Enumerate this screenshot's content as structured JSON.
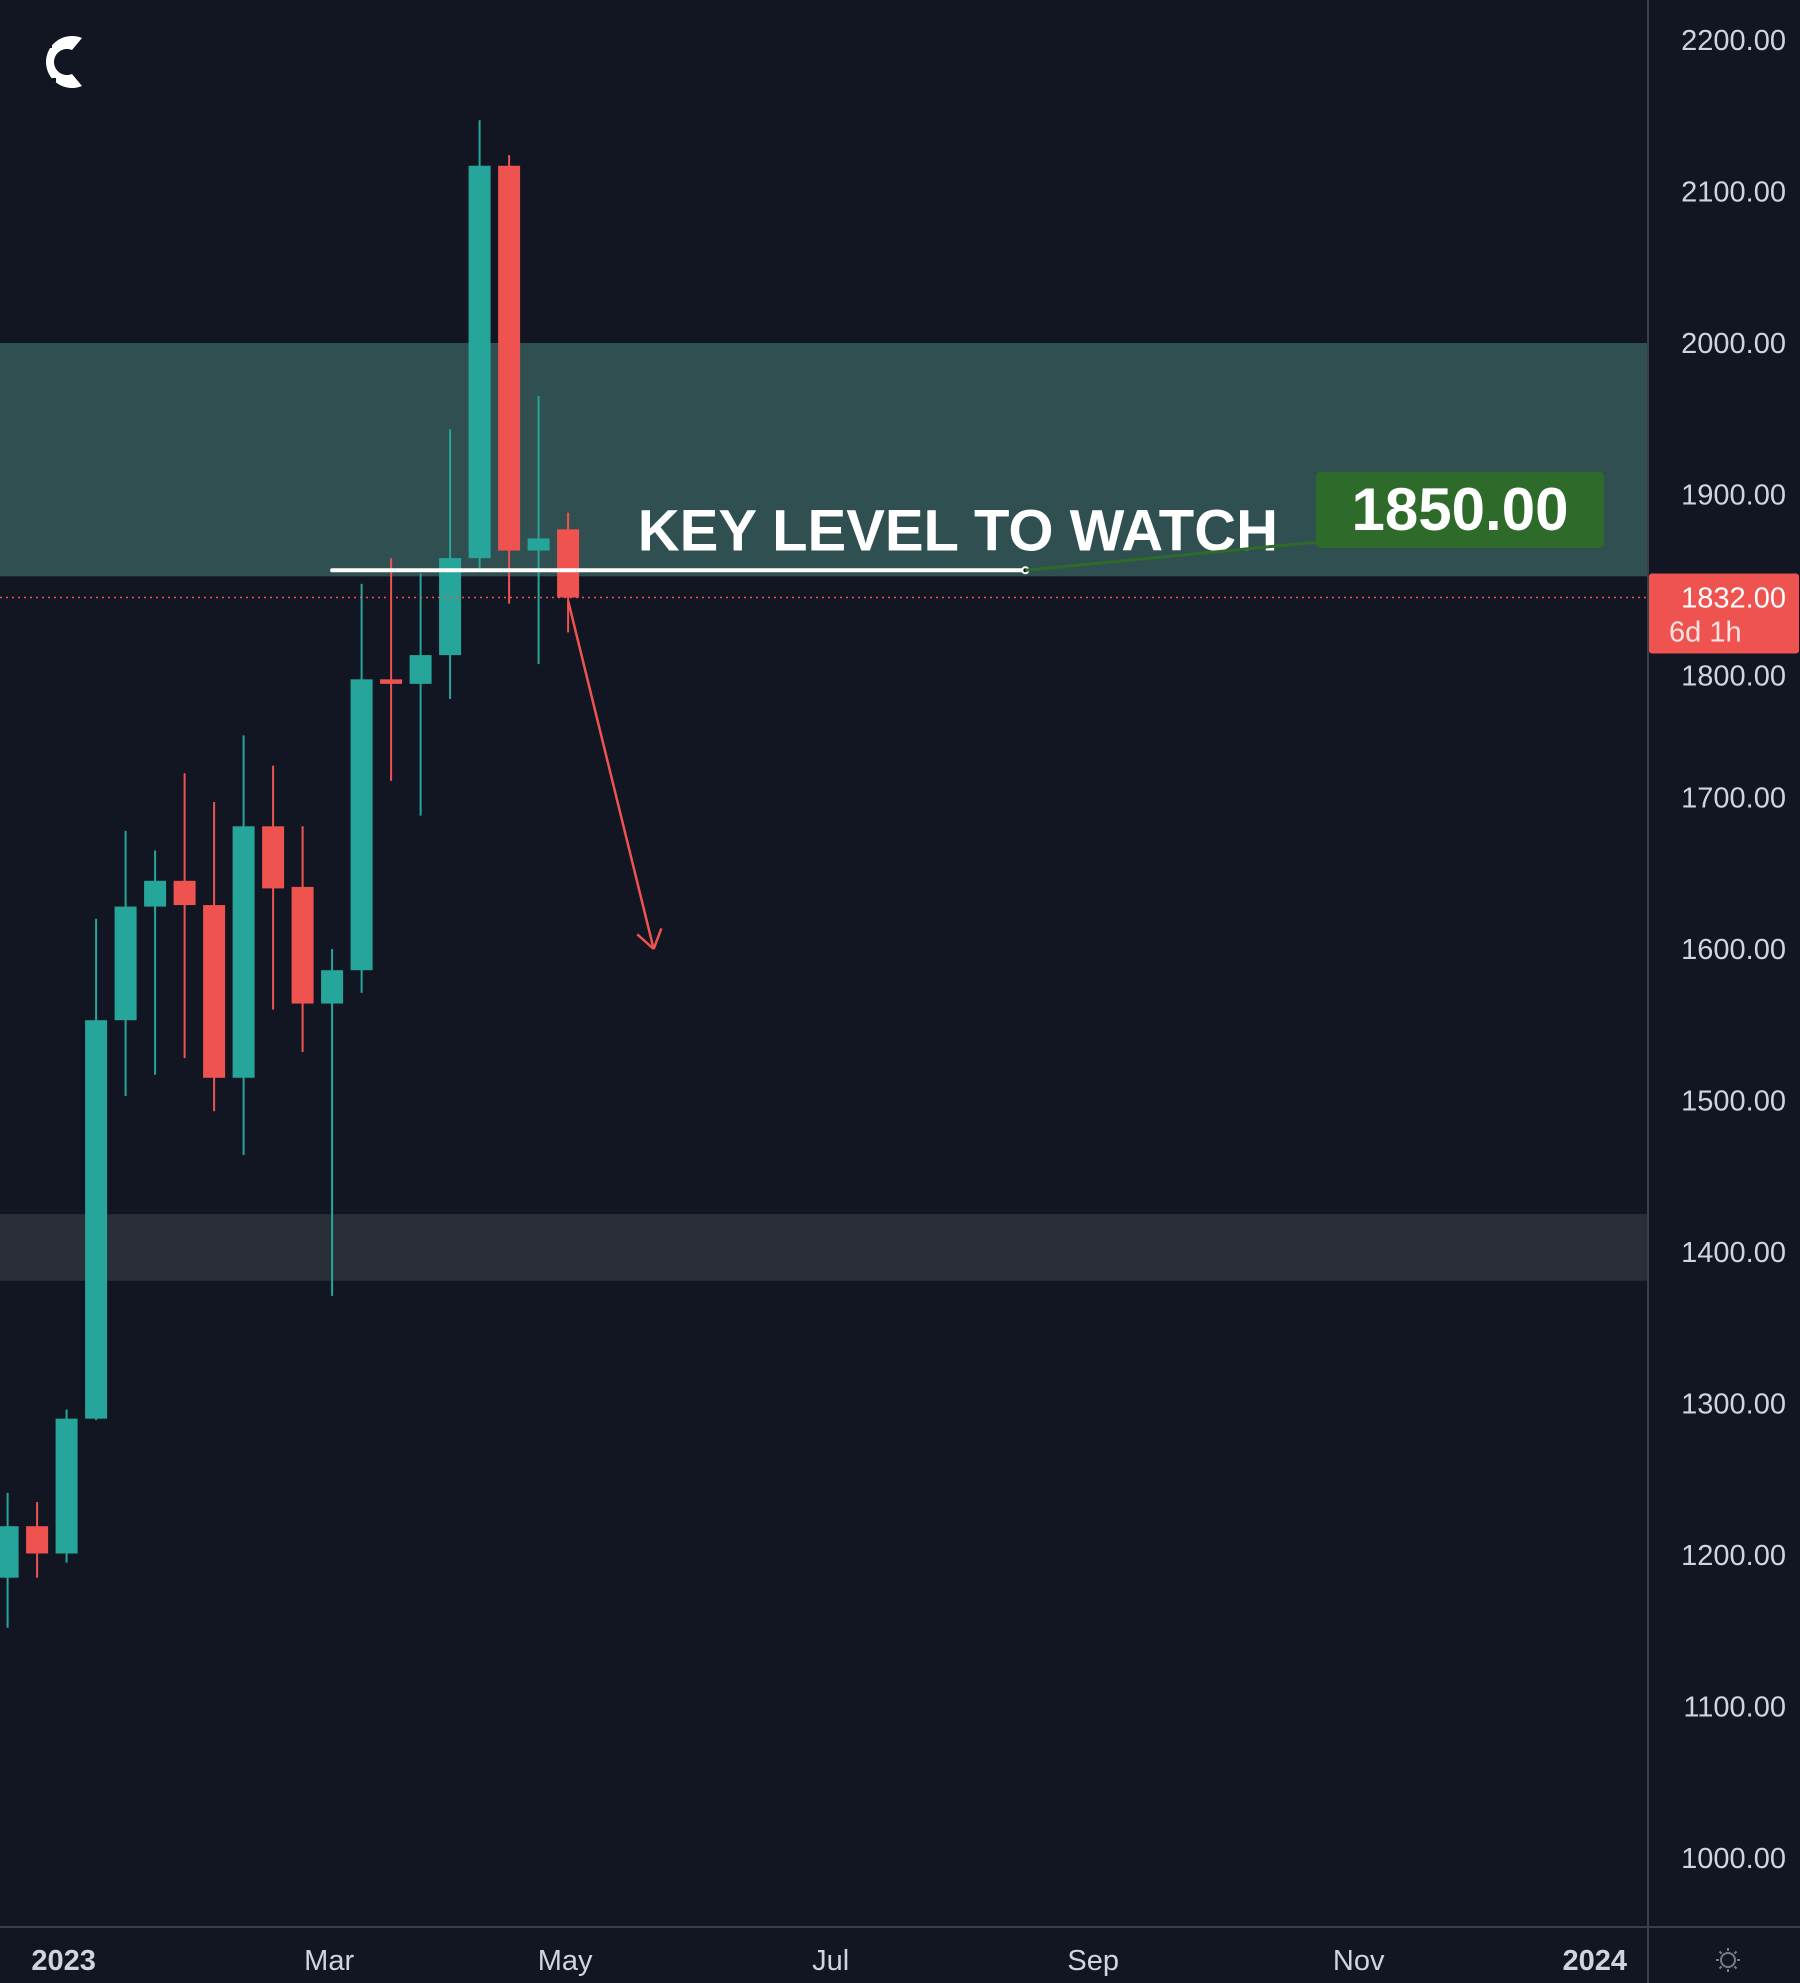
{
  "chart_data": {
    "type": "candlestick",
    "interval": "weekly",
    "ylim": [
      950,
      2225
    ],
    "y_ticks": [
      1000,
      1100,
      1200,
      1300,
      1400,
      1500,
      1600,
      1700,
      1800,
      1900,
      2000,
      2100,
      2200
    ],
    "y_tick_labels": [
      "1000.00",
      "1100.00",
      "1200.00",
      "1300.00",
      "1400.00",
      "1500.00",
      "1600.00",
      "1700.00",
      "1800.00",
      "1900.00",
      "2000.00",
      "2100.00",
      "2200.00"
    ],
    "x_ticks": [
      {
        "label": "2023",
        "index": 1.9,
        "bold": true
      },
      {
        "label": "Mar",
        "index": 10.9,
        "bold": false
      },
      {
        "label": "May",
        "index": 18.9,
        "bold": false
      },
      {
        "label": "Jul",
        "index": 27.9,
        "bold": false
      },
      {
        "label": "Sep",
        "index": 36.8,
        "bold": false
      },
      {
        "label": "Nov",
        "index": 45.8,
        "bold": false
      },
      {
        "label": "2024",
        "index": 53.8,
        "bold": true
      }
    ],
    "candles": [
      {
        "o": 1185,
        "h": 1241,
        "l": 1152,
        "c": 1219
      },
      {
        "o": 1219,
        "h": 1235,
        "l": 1185,
        "c": 1201
      },
      {
        "o": 1201,
        "h": 1296,
        "l": 1195,
        "c": 1290
      },
      {
        "o": 1290,
        "h": 1620,
        "l": 1289,
        "c": 1553
      },
      {
        "o": 1553,
        "h": 1678,
        "l": 1503,
        "c": 1628
      },
      {
        "o": 1628,
        "h": 1665,
        "l": 1517,
        "c": 1645
      },
      {
        "o": 1645,
        "h": 1716,
        "l": 1528,
        "c": 1629
      },
      {
        "o": 1629,
        "h": 1697,
        "l": 1493,
        "c": 1515
      },
      {
        "o": 1515,
        "h": 1741,
        "l": 1464,
        "c": 1681
      },
      {
        "o": 1681,
        "h": 1721,
        "l": 1560,
        "c": 1640
      },
      {
        "o": 1641,
        "h": 1681,
        "l": 1532,
        "c": 1564
      },
      {
        "o": 1564,
        "h": 1600,
        "l": 1371,
        "c": 1586
      },
      {
        "o": 1586,
        "h": 1841,
        "l": 1571,
        "c": 1778
      },
      {
        "o": 1778,
        "h": 1858,
        "l": 1711,
        "c": 1775
      },
      {
        "o": 1775,
        "h": 1848,
        "l": 1688,
        "c": 1794
      },
      {
        "o": 1794,
        "h": 1943,
        "l": 1765,
        "c": 1858
      },
      {
        "o": 1858,
        "h": 2147,
        "l": 1851,
        "c": 2117
      },
      {
        "o": 2117,
        "h": 2124,
        "l": 1828,
        "c": 1863
      },
      {
        "o": 1863,
        "h": 1965,
        "l": 1788,
        "c": 1871
      },
      {
        "o": 1877,
        "h": 1888,
        "l": 1809,
        "c": 1832
      }
    ],
    "zones": [
      {
        "name": "resistance-zone",
        "from": 1846,
        "to": 2000,
        "color": "#2f4f50"
      },
      {
        "name": "support-zone",
        "from": 1381,
        "to": 1425,
        "color": "#2a2e39"
      }
    ],
    "key_level": {
      "price": 1850,
      "from_index": 11.0,
      "to_index": 34.5,
      "text": "KEY LEVEL TO WATCH",
      "label": "1850.00",
      "label_color": "#2e6b2a"
    },
    "arrow": {
      "from": {
        "index": 19,
        "price": 1830
      },
      "to": {
        "index": 21.9,
        "price": 1600
      },
      "color": "#ef5350"
    },
    "current_price": {
      "price": 1832,
      "label": "1832.00",
      "countdown": "6d 1h",
      "color": "#ef5350"
    },
    "colors": {
      "up": "#26a69a",
      "down": "#ef5350",
      "bg": "#121622",
      "text": "#d1d4dc"
    }
  },
  "logo": {
    "text": "C"
  },
  "settings_icon": "gear-icon"
}
